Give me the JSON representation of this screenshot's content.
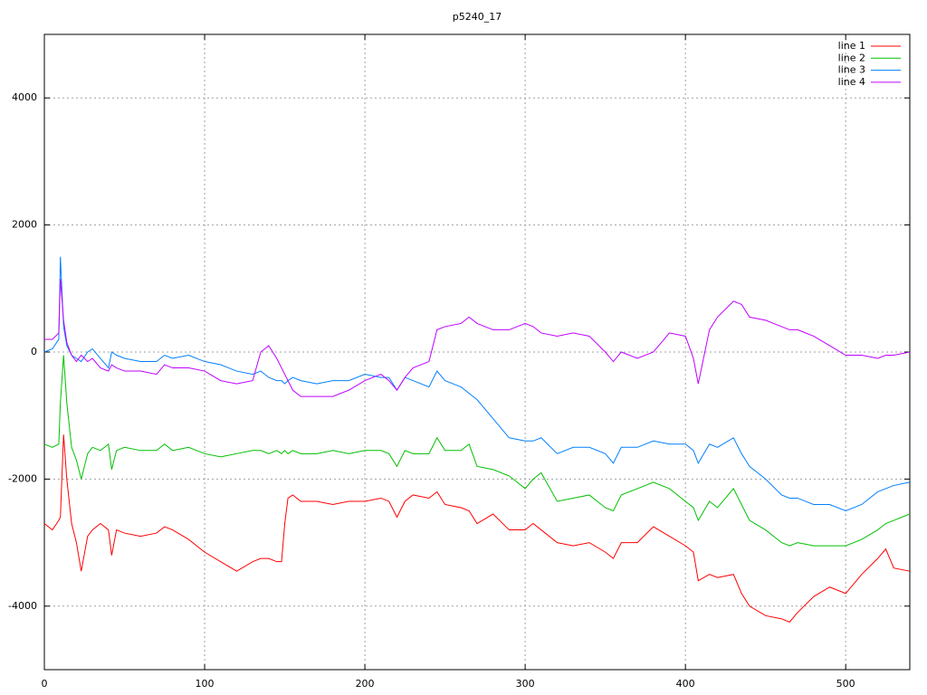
{
  "chart_data": {
    "type": "line",
    "title": "p5240_17",
    "x": [
      0,
      5,
      9,
      10,
      12,
      14,
      17,
      20,
      23,
      27,
      30,
      35,
      40,
      42,
      45,
      50,
      60,
      70,
      75,
      80,
      90,
      100,
      110,
      120,
      130,
      135,
      140,
      145,
      148,
      150,
      152,
      155,
      160,
      170,
      180,
      190,
      200,
      210,
      215,
      220,
      225,
      230,
      240,
      245,
      250,
      260,
      265,
      270,
      280,
      290,
      300,
      305,
      310,
      320,
      330,
      340,
      350,
      355,
      360,
      370,
      380,
      390,
      400,
      405,
      408,
      415,
      420,
      430,
      435,
      440,
      450,
      460,
      465,
      470,
      480,
      490,
      500,
      510,
      520,
      525,
      530,
      540
    ],
    "series": [
      {
        "name": "line 1",
        "color": "#ff0000",
        "values": [
          -2700,
          -2800,
          -2650,
          -2600,
          -1300,
          -2000,
          -2700,
          -3000,
          -3450,
          -2900,
          -2800,
          -2700,
          -2800,
          -3200,
          -2800,
          -2850,
          -2900,
          -2850,
          -2750,
          -2800,
          -2950,
          -3150,
          -3300,
          -3450,
          -3300,
          -3250,
          -3250,
          -3300,
          -3300,
          -2700,
          -2300,
          -2250,
          -2350,
          -2350,
          -2400,
          -2350,
          -2350,
          -2300,
          -2350,
          -2600,
          -2350,
          -2250,
          -2300,
          -2200,
          -2400,
          -2450,
          -2500,
          -2700,
          -2550,
          -2800,
          -2800,
          -2700,
          -2800,
          -3000,
          -3050,
          -3000,
          -3150,
          -3250,
          -3000,
          -3000,
          -2750,
          -2900,
          -3050,
          -3150,
          -3600,
          -3500,
          -3550,
          -3500,
          -3800,
          -4000,
          -4150,
          -4200,
          -4250,
          -4100,
          -3850,
          -3700,
          -3800,
          -3500,
          -3250,
          -3100,
          -3400,
          -3450
        ]
      },
      {
        "name": "line 2",
        "color": "#00c000",
        "values": [
          -1450,
          -1500,
          -1450,
          -800,
          -50,
          -800,
          -1500,
          -1700,
          -2000,
          -1600,
          -1500,
          -1550,
          -1450,
          -1850,
          -1550,
          -1500,
          -1550,
          -1550,
          -1450,
          -1550,
          -1500,
          -1600,
          -1650,
          -1600,
          -1550,
          -1550,
          -1600,
          -1550,
          -1600,
          -1550,
          -1600,
          -1550,
          -1600,
          -1600,
          -1550,
          -1600,
          -1550,
          -1550,
          -1600,
          -1800,
          -1550,
          -1600,
          -1600,
          -1350,
          -1550,
          -1550,
          -1450,
          -1800,
          -1850,
          -1950,
          -2150,
          -2000,
          -1900,
          -2350,
          -2300,
          -2250,
          -2450,
          -2500,
          -2250,
          -2150,
          -2050,
          -2150,
          -2350,
          -2450,
          -2650,
          -2350,
          -2450,
          -2150,
          -2400,
          -2650,
          -2800,
          -3000,
          -3050,
          -3000,
          -3050,
          -3050,
          -3050,
          -2950,
          -2800,
          -2700,
          -2650,
          -2550
        ]
      },
      {
        "name": "line 3",
        "color": "#0080ff",
        "values": [
          0,
          50,
          200,
          1500,
          400,
          100,
          -50,
          -100,
          -150,
          0,
          50,
          -100,
          -250,
          0,
          -50,
          -100,
          -150,
          -150,
          -50,
          -100,
          -50,
          -150,
          -200,
          -300,
          -350,
          -300,
          -400,
          -450,
          -450,
          -500,
          -450,
          -400,
          -450,
          -500,
          -450,
          -450,
          -350,
          -400,
          -400,
          -600,
          -400,
          -450,
          -550,
          -300,
          -450,
          -550,
          -650,
          -750,
          -1050,
          -1350,
          -1400,
          -1400,
          -1350,
          -1600,
          -1500,
          -1500,
          -1600,
          -1750,
          -1500,
          -1500,
          -1400,
          -1450,
          -1450,
          -1550,
          -1750,
          -1450,
          -1500,
          -1350,
          -1600,
          -1800,
          -2000,
          -2250,
          -2300,
          -2300,
          -2400,
          -2400,
          -2500,
          -2400,
          -2200,
          -2150,
          -2100,
          -2050
        ]
      },
      {
        "name": "line 4",
        "color": "#c000ff",
        "values": [
          200,
          200,
          300,
          1150,
          500,
          150,
          -50,
          -150,
          -50,
          -150,
          -100,
          -250,
          -300,
          -200,
          -250,
          -300,
          -300,
          -350,
          -200,
          -250,
          -250,
          -300,
          -450,
          -500,
          -450,
          0,
          100,
          -100,
          -250,
          -350,
          -450,
          -600,
          -700,
          -700,
          -700,
          -600,
          -450,
          -350,
          -450,
          -600,
          -400,
          -250,
          -150,
          350,
          400,
          450,
          550,
          450,
          350,
          350,
          450,
          400,
          300,
          250,
          300,
          250,
          0,
          -150,
          0,
          -100,
          0,
          300,
          250,
          -100,
          -500,
          350,
          550,
          800,
          750,
          550,
          500,
          400,
          350,
          350,
          250,
          100,
          -50,
          -50,
          -100,
          -50,
          -50,
          0
        ]
      }
    ],
    "xlim": [
      0,
      540
    ],
    "ylim": [
      -5000,
      5000
    ],
    "xticks": [
      0,
      100,
      200,
      300,
      400,
      500
    ],
    "yticks": [
      -4000,
      -2000,
      0,
      2000,
      4000
    ],
    "grid": true,
    "legend": "top-right"
  }
}
